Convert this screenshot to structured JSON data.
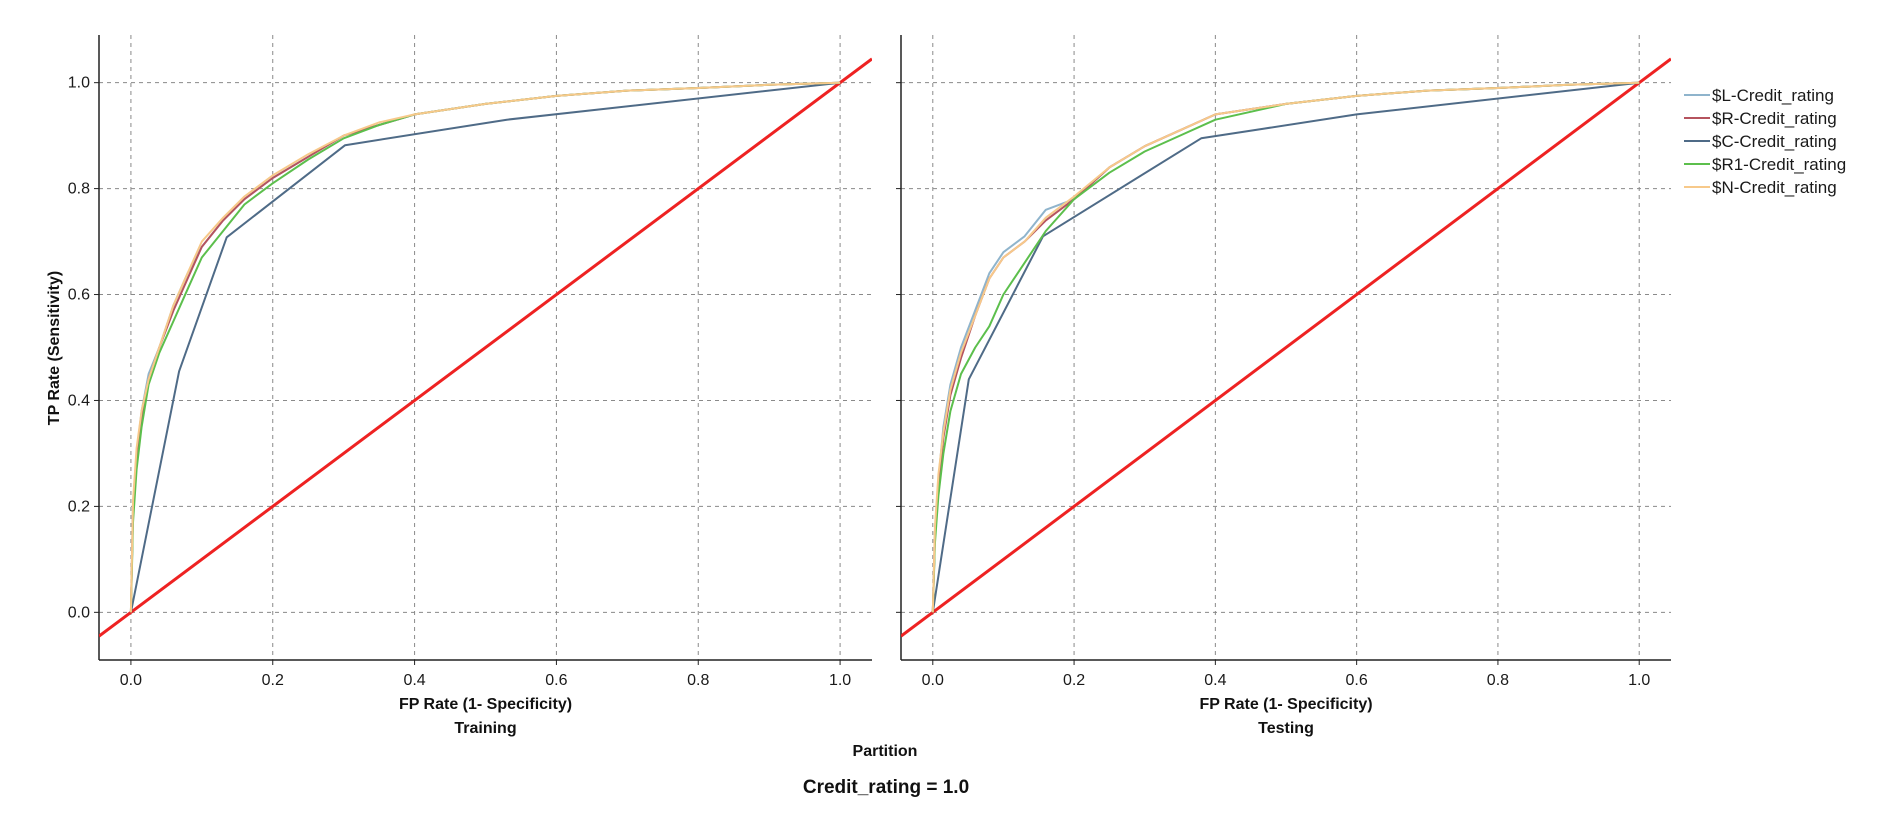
{
  "chart_data": {
    "type": "line",
    "ylabel": "TP Rate (Sensitivity)",
    "xlabel": "FP Rate (1- Specificity)",
    "partition_label": "Partition",
    "footer": "Credit_rating = 1.0",
    "xlim": [
      -0.045,
      1.045
    ],
    "ylim": [
      -0.09,
      1.09
    ],
    "x_ticks": [
      "0.0",
      "0.2",
      "0.4",
      "0.6",
      "0.8",
      "1.0"
    ],
    "y_ticks": [
      "0.0",
      "0.2",
      "0.4",
      "0.6",
      "0.8",
      "1.0"
    ],
    "grid": true,
    "legend_position": "right",
    "reference_line": {
      "color": "#ee2222"
    },
    "legend": [
      {
        "name": "$L-Credit_rating",
        "color": "#8fb4cc"
      },
      {
        "name": "$R-Credit_rating",
        "color": "#b5535e"
      },
      {
        "name": "$C-Credit_rating",
        "color": "#4f6b87"
      },
      {
        "name": "$R1-Credit_rating",
        "color": "#5cbf4c"
      },
      {
        "name": "$N-Credit_rating",
        "color": "#f7c98a"
      }
    ],
    "panels": [
      {
        "title": "Training",
        "series": [
          {
            "name": "$L-Credit_rating",
            "x": [
              0,
              0.003,
              0.008,
              0.015,
              0.025,
              0.04,
              0.06,
              0.08,
              0.1,
              0.13,
              0.16,
              0.2,
              0.25,
              0.3,
              0.35,
              0.4,
              0.5,
              0.6,
              0.7,
              0.8,
              0.9,
              1.0
            ],
            "y": [
              0,
              0.2,
              0.3,
              0.38,
              0.45,
              0.5,
              0.58,
              0.64,
              0.69,
              0.74,
              0.78,
              0.82,
              0.86,
              0.9,
              0.92,
              0.94,
              0.96,
              0.975,
              0.985,
              0.99,
              0.996,
              1.0
            ]
          },
          {
            "name": "$R-Credit_rating",
            "x": [
              0,
              0.003,
              0.008,
              0.015,
              0.025,
              0.04,
              0.06,
              0.08,
              0.1,
              0.13,
              0.16,
              0.2,
              0.25,
              0.3,
              0.35,
              0.4,
              0.5,
              0.6,
              0.7,
              0.8,
              0.9,
              1.0
            ],
            "y": [
              0,
              0.19,
              0.29,
              0.37,
              0.44,
              0.5,
              0.57,
              0.63,
              0.69,
              0.74,
              0.78,
              0.82,
              0.86,
              0.9,
              0.92,
              0.94,
              0.96,
              0.975,
              0.985,
              0.99,
              0.996,
              1.0
            ]
          },
          {
            "name": "$C-Credit_rating",
            "x": [
              0,
              0.068,
              0.135,
              0.302,
              0.53,
              1.0
            ],
            "y": [
              0,
              0.455,
              0.708,
              0.882,
              0.93,
              1.0
            ]
          },
          {
            "name": "$R1-Credit_rating",
            "x": [
              0,
              0.003,
              0.008,
              0.015,
              0.025,
              0.04,
              0.06,
              0.08,
              0.1,
              0.13,
              0.16,
              0.2,
              0.25,
              0.3,
              0.35,
              0.4,
              0.5,
              0.6,
              0.7,
              0.8,
              0.9,
              1.0
            ],
            "y": [
              0,
              0.17,
              0.27,
              0.35,
              0.43,
              0.49,
              0.55,
              0.61,
              0.67,
              0.72,
              0.77,
              0.81,
              0.855,
              0.895,
              0.92,
              0.94,
              0.96,
              0.975,
              0.985,
              0.99,
              0.996,
              1.0
            ]
          },
          {
            "name": "$N-Credit_rating",
            "x": [
              0,
              0.003,
              0.008,
              0.015,
              0.025,
              0.04,
              0.06,
              0.08,
              0.1,
              0.13,
              0.16,
              0.2,
              0.25,
              0.3,
              0.35,
              0.4,
              0.5,
              0.6,
              0.7,
              0.8,
              0.9,
              1.0
            ],
            "y": [
              0,
              0.21,
              0.31,
              0.38,
              0.44,
              0.5,
              0.58,
              0.64,
              0.7,
              0.745,
              0.785,
              0.825,
              0.865,
              0.9,
              0.925,
              0.94,
              0.96,
              0.975,
              0.985,
              0.99,
              0.996,
              1.0
            ]
          }
        ]
      },
      {
        "title": "Testing",
        "series": [
          {
            "name": "$L-Credit_rating",
            "x": [
              0,
              0.003,
              0.008,
              0.015,
              0.025,
              0.04,
              0.06,
              0.08,
              0.1,
              0.13,
              0.16,
              0.2,
              0.25,
              0.3,
              0.35,
              0.4,
              0.5,
              0.6,
              0.7,
              0.8,
              0.9,
              1.0
            ],
            "y": [
              0,
              0.15,
              0.25,
              0.35,
              0.43,
              0.5,
              0.57,
              0.64,
              0.68,
              0.71,
              0.76,
              0.78,
              0.84,
              0.88,
              0.91,
              0.94,
              0.96,
              0.975,
              0.985,
              0.99,
              0.996,
              1.0
            ]
          },
          {
            "name": "$R-Credit_rating",
            "x": [
              0,
              0.003,
              0.008,
              0.015,
              0.025,
              0.04,
              0.06,
              0.08,
              0.1,
              0.13,
              0.16,
              0.2,
              0.25,
              0.3,
              0.35,
              0.4,
              0.5,
              0.6,
              0.7,
              0.8,
              0.9,
              1.0
            ],
            "y": [
              0,
              0.14,
              0.24,
              0.33,
              0.41,
              0.48,
              0.56,
              0.63,
              0.67,
              0.7,
              0.74,
              0.78,
              0.84,
              0.88,
              0.91,
              0.94,
              0.96,
              0.975,
              0.985,
              0.99,
              0.996,
              1.0
            ]
          },
          {
            "name": "$C-Credit_rating",
            "x": [
              0,
              0.051,
              0.156,
              0.38,
              0.6,
              1.0
            ],
            "y": [
              0,
              0.44,
              0.71,
              0.895,
              0.94,
              1.0
            ]
          },
          {
            "name": "$R1-Credit_rating",
            "x": [
              0,
              0.003,
              0.008,
              0.015,
              0.025,
              0.04,
              0.06,
              0.08,
              0.1,
              0.13,
              0.16,
              0.2,
              0.25,
              0.3,
              0.35,
              0.4,
              0.5,
              0.6,
              0.7,
              0.8,
              0.9,
              1.0
            ],
            "y": [
              0,
              0.13,
              0.22,
              0.3,
              0.38,
              0.45,
              0.5,
              0.54,
              0.6,
              0.66,
              0.72,
              0.78,
              0.83,
              0.87,
              0.9,
              0.93,
              0.96,
              0.975,
              0.985,
              0.99,
              0.996,
              1.0
            ]
          },
          {
            "name": "$N-Credit_rating",
            "x": [
              0,
              0.003,
              0.008,
              0.015,
              0.025,
              0.04,
              0.06,
              0.08,
              0.1,
              0.13,
              0.16,
              0.2,
              0.25,
              0.3,
              0.35,
              0.4,
              0.5,
              0.6,
              0.7,
              0.8,
              0.9,
              1.0
            ],
            "y": [
              0,
              0.16,
              0.26,
              0.34,
              0.42,
              0.49,
              0.56,
              0.63,
              0.67,
              0.7,
              0.745,
              0.785,
              0.84,
              0.88,
              0.91,
              0.94,
              0.96,
              0.975,
              0.985,
              0.99,
              0.996,
              1.0
            ]
          }
        ]
      }
    ]
  }
}
